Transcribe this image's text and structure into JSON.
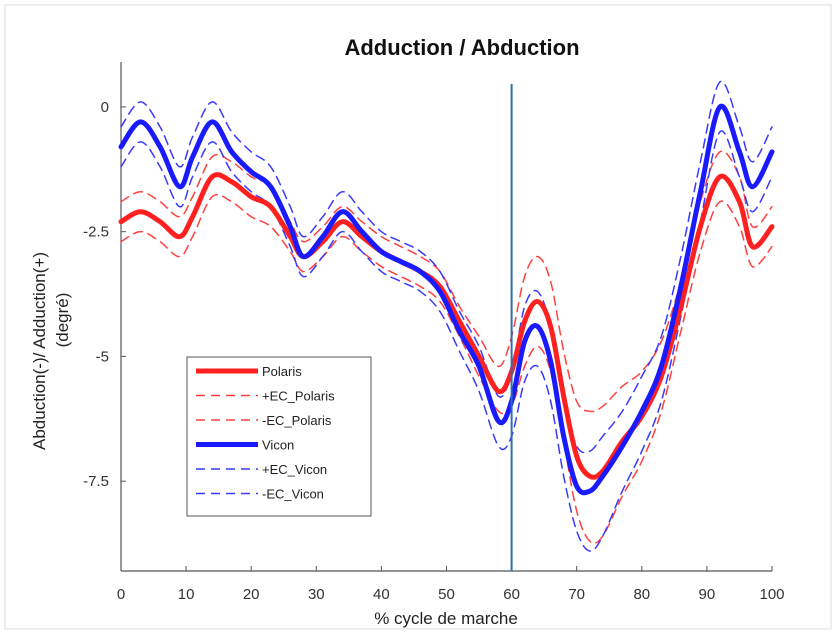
{
  "chart_data": {
    "type": "line",
    "title": "Adduction /  Abduction",
    "xlabel": "% cycle de marche",
    "ylabel_line1": "Abduction(-)/  Adduction(+)",
    "ylabel_line2": "(degré)",
    "xlim": [
      0,
      100
    ],
    "ylim": [
      -9.3,
      0.9
    ],
    "x_ticks": [
      0,
      10,
      20,
      30,
      40,
      50,
      60,
      70,
      80,
      90,
      100
    ],
    "x_tick_labels": [
      "0",
      "10",
      "20",
      "30",
      "40",
      "50",
      "60",
      "70",
      "80",
      "90",
      "100"
    ],
    "y_ticks": [
      0,
      -2.5,
      -5,
      -7.5
    ],
    "y_tick_labels": [
      "0",
      "-2.5",
      "-5",
      "-7.5"
    ],
    "grid": false,
    "vertical_marker_x": 60,
    "legend_position": "lower-left",
    "x": [
      0,
      3,
      6,
      9,
      11,
      14,
      17,
      20,
      23,
      26,
      28,
      31,
      34,
      37,
      40,
      43,
      46,
      49,
      52,
      55,
      58,
      60,
      62,
      64,
      66,
      68,
      70,
      72,
      74,
      77,
      80,
      83,
      86,
      89,
      92,
      95,
      97,
      100
    ],
    "series": [
      {
        "name": "Polaris",
        "color": "#ff2020",
        "style": "solid",
        "width": 5,
        "values": [
          -2.3,
          -2.1,
          -2.3,
          -2.6,
          -2.2,
          -1.4,
          -1.5,
          -1.8,
          -2.0,
          -2.6,
          -3.0,
          -2.7,
          -2.3,
          -2.6,
          -2.9,
          -3.1,
          -3.3,
          -3.6,
          -4.3,
          -5.0,
          -5.7,
          -5.3,
          -4.3,
          -3.9,
          -4.4,
          -5.8,
          -7.0,
          -7.4,
          -7.3,
          -6.7,
          -6.2,
          -5.4,
          -4.0,
          -2.4,
          -1.4,
          -1.9,
          -2.8,
          -2.4
        ]
      },
      {
        "name": "+EC_Polaris",
        "color": "#ff4040",
        "style": "dashed",
        "width": 1.5,
        "values": [
          -1.9,
          -1.7,
          -1.9,
          -2.2,
          -1.8,
          -1.0,
          -1.1,
          -1.4,
          -1.6,
          -2.3,
          -2.7,
          -2.4,
          -2.0,
          -2.3,
          -2.6,
          -2.8,
          -3.0,
          -3.3,
          -4.0,
          -4.6,
          -5.2,
          -4.6,
          -3.4,
          -3.0,
          -3.5,
          -4.9,
          -5.9,
          -6.1,
          -6.0,
          -5.6,
          -5.3,
          -4.7,
          -3.5,
          -1.9,
          -0.9,
          -1.4,
          -2.4,
          -2.0
        ]
      },
      {
        "name": "-EC_Polaris",
        "color": "#ff4040",
        "style": "dashed",
        "width": 1.5,
        "values": [
          -2.7,
          -2.5,
          -2.7,
          -3.0,
          -2.6,
          -1.8,
          -1.9,
          -2.2,
          -2.4,
          -2.9,
          -3.3,
          -3.0,
          -2.6,
          -2.9,
          -3.2,
          -3.4,
          -3.6,
          -3.9,
          -4.6,
          -5.4,
          -6.1,
          -6.0,
          -5.2,
          -4.8,
          -5.3,
          -6.7,
          -8.1,
          -8.7,
          -8.6,
          -7.8,
          -7.1,
          -6.1,
          -4.5,
          -2.9,
          -1.9,
          -2.4,
          -3.2,
          -2.8
        ]
      },
      {
        "name": "Vicon",
        "color": "#1a1aff",
        "style": "solid",
        "width": 5,
        "values": [
          -0.8,
          -0.3,
          -0.8,
          -1.6,
          -1.0,
          -0.3,
          -0.9,
          -1.3,
          -1.6,
          -2.4,
          -3.0,
          -2.6,
          -2.1,
          -2.5,
          -2.9,
          -3.1,
          -3.3,
          -3.7,
          -4.5,
          -5.2,
          -6.3,
          -5.9,
          -4.7,
          -4.4,
          -5.1,
          -6.6,
          -7.6,
          -7.7,
          -7.4,
          -6.8,
          -6.1,
          -5.2,
          -3.6,
          -1.7,
          0.0,
          -0.9,
          -1.6,
          -0.9
        ]
      },
      {
        "name": "+EC_Vicon",
        "color": "#3a3aff",
        "style": "dashed",
        "width": 1.5,
        "values": [
          -0.4,
          0.1,
          -0.4,
          -1.2,
          -0.6,
          0.1,
          -0.5,
          -0.9,
          -1.2,
          -2.0,
          -2.6,
          -2.2,
          -1.7,
          -2.1,
          -2.5,
          -2.7,
          -2.9,
          -3.3,
          -4.1,
          -4.8,
          -5.8,
          -5.3,
          -4.0,
          -3.7,
          -4.4,
          -5.9,
          -6.8,
          -6.9,
          -6.6,
          -6.1,
          -5.4,
          -4.6,
          -3.0,
          -1.1,
          0.5,
          -0.4,
          -1.1,
          -0.4
        ]
      },
      {
        "name": "-EC_Vicon",
        "color": "#3a3aff",
        "style": "dashed",
        "width": 1.5,
        "values": [
          -1.2,
          -0.7,
          -1.2,
          -2.0,
          -1.4,
          -0.7,
          -1.3,
          -1.7,
          -2.0,
          -2.8,
          -3.4,
          -3.0,
          -2.5,
          -2.9,
          -3.3,
          -3.5,
          -3.7,
          -4.1,
          -4.9,
          -5.7,
          -6.8,
          -6.6,
          -5.5,
          -5.2,
          -5.9,
          -7.4,
          -8.5,
          -8.9,
          -8.6,
          -7.7,
          -6.9,
          -5.9,
          -4.2,
          -2.3,
          -0.5,
          -1.4,
          -2.1,
          -1.4
        ]
      }
    ]
  }
}
